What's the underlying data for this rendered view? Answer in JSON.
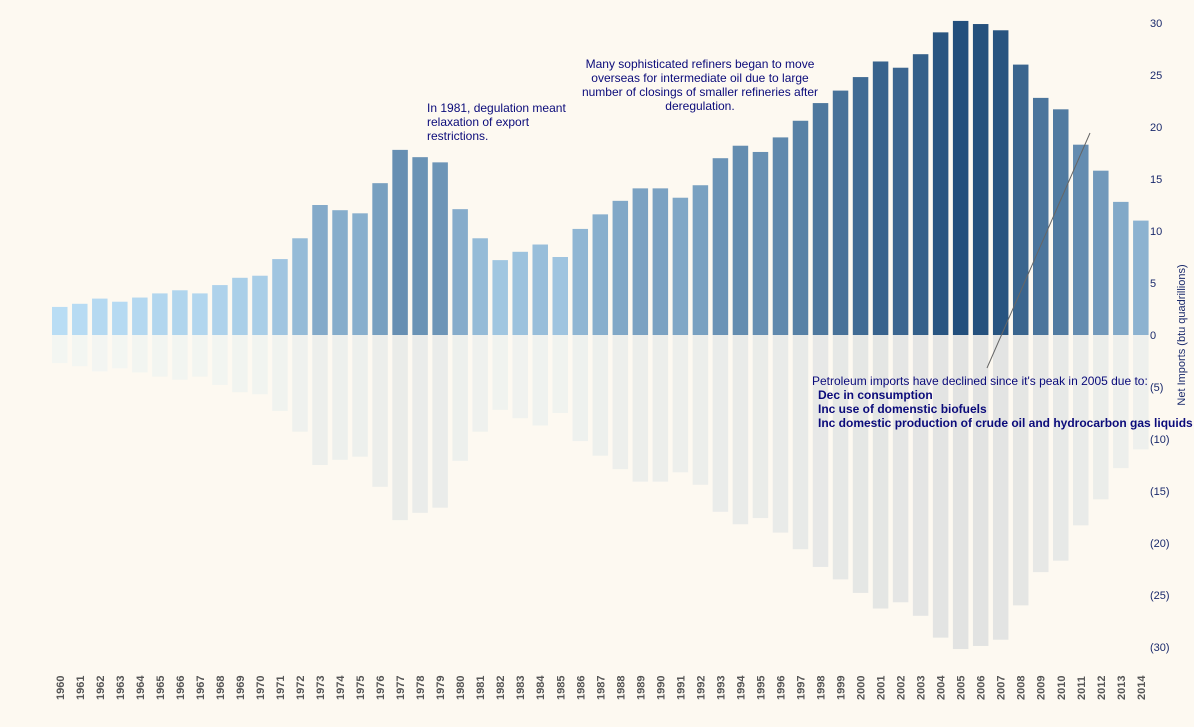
{
  "chart_data": {
    "type": "bar",
    "title": "",
    "xlabel": "",
    "ylabel": "Net Imports (btu quadrillions)",
    "ylim": [
      -30,
      30
    ],
    "y_axis_side": "right",
    "y_ticks": [
      {
        "value": 30,
        "label": "30"
      },
      {
        "value": 25,
        "label": "25"
      },
      {
        "value": 20,
        "label": "20"
      },
      {
        "value": 15,
        "label": "15"
      },
      {
        "value": 10,
        "label": "10"
      },
      {
        "value": 5,
        "label": "5"
      },
      {
        "value": 0,
        "label": "0"
      },
      {
        "value": -5,
        "label": "(5)"
      },
      {
        "value": -10,
        "label": "(10)"
      },
      {
        "value": -15,
        "label": "(15)"
      },
      {
        "value": -20,
        "label": "(20)"
      },
      {
        "value": -25,
        "label": "(25)"
      },
      {
        "value": -30,
        "label": "(30)"
      }
    ],
    "grid": false,
    "mirror_reflection": true,
    "colors": {
      "low": "#b9ddf4",
      "high": "#234f7c",
      "reflection_low": "#f3f6f2",
      "reflection_high": "#e2e3e2"
    },
    "categories": [
      "1960",
      "1961",
      "1962",
      "1963",
      "1964",
      "1965",
      "1966",
      "1967",
      "1968",
      "1969",
      "1970",
      "1971",
      "1972",
      "1973",
      "1974",
      "1975",
      "1976",
      "1977",
      "1978",
      "1979",
      "1980",
      "1981",
      "1982",
      "1983",
      "1984",
      "1985",
      "1986",
      "1987",
      "1988",
      "1989",
      "1990",
      "1991",
      "1992",
      "1993",
      "1994",
      "1995",
      "1996",
      "1997",
      "1998",
      "1999",
      "2000",
      "2001",
      "2002",
      "2003",
      "2004",
      "2005",
      "2006",
      "2007",
      "2008",
      "2009",
      "2010",
      "2011",
      "2012",
      "2013",
      "2014"
    ],
    "values": [
      2.7,
      3.0,
      3.5,
      3.2,
      3.6,
      4.0,
      4.3,
      4.0,
      4.8,
      5.5,
      5.7,
      7.3,
      9.3,
      12.5,
      12.0,
      11.7,
      14.6,
      17.8,
      17.1,
      16.6,
      12.1,
      9.3,
      7.2,
      8.0,
      8.7,
      7.5,
      10.2,
      11.6,
      12.9,
      14.1,
      14.1,
      13.2,
      14.4,
      17.0,
      18.2,
      17.6,
      19.0,
      20.6,
      22.3,
      23.5,
      24.8,
      26.3,
      25.7,
      27.0,
      29.1,
      30.2,
      29.9,
      29.3,
      26.0,
      22.8,
      21.7,
      18.3,
      15.8,
      12.8,
      11.0
    ]
  },
  "annotations": {
    "deregulation": "In 1981, degulation meant relaxation of export restrictions.",
    "refiners": "Many sophisticated refiners began to move overseas for intermediate oil due to large number of closings of smaller refineries after deregulation.",
    "decline_intro": "Petroleum imports have declined since it's peak in 2005 due to:",
    "decline_reasons": [
      "Dec in consumption",
      "Inc use of domenstic biofuels",
      "Inc domestic production of crude oil and hydrocarbon gas liquids"
    ]
  }
}
